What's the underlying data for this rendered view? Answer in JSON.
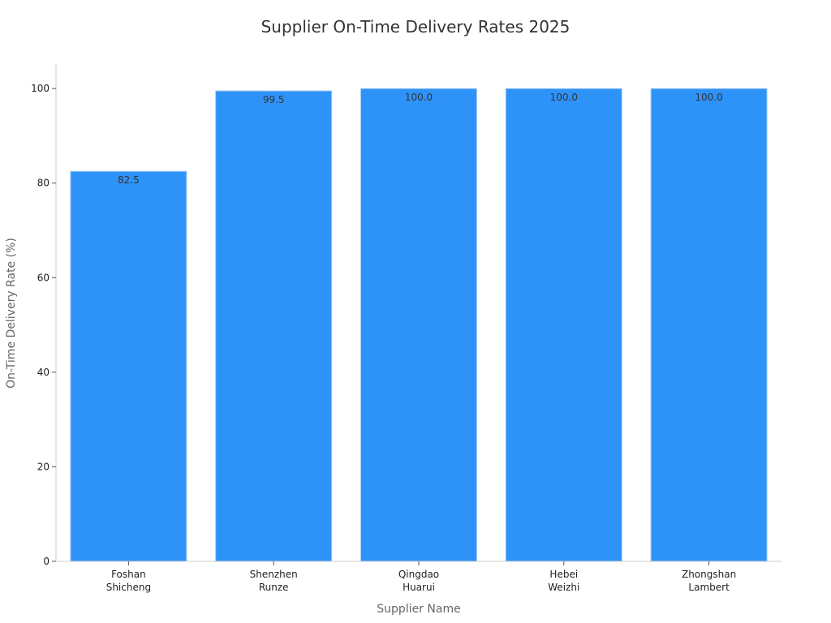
{
  "chart_data": {
    "type": "bar",
    "title": "Supplier On-Time Delivery Rates 2025",
    "xlabel": "Supplier Name",
    "ylabel": "On-Time Delivery Rate (%)",
    "categories": [
      [
        "Foshan",
        "Shicheng"
      ],
      [
        "Shenzhen",
        "Runze"
      ],
      [
        "Qingdao",
        "Huarui"
      ],
      [
        "Hebei",
        "Weizhi"
      ],
      [
        "Zhongshan",
        "Lambert"
      ]
    ],
    "values": [
      82.5,
      99.5,
      100.0,
      100.0,
      100.0
    ],
    "data_labels": [
      "82.5",
      "99.5",
      "100.0",
      "100.0",
      "100.0"
    ],
    "ylim": [
      0,
      105
    ],
    "yticks": [
      0,
      20,
      40,
      60,
      80,
      100
    ],
    "grid": false,
    "bar_color": "#2e93f9",
    "legend": "none"
  }
}
